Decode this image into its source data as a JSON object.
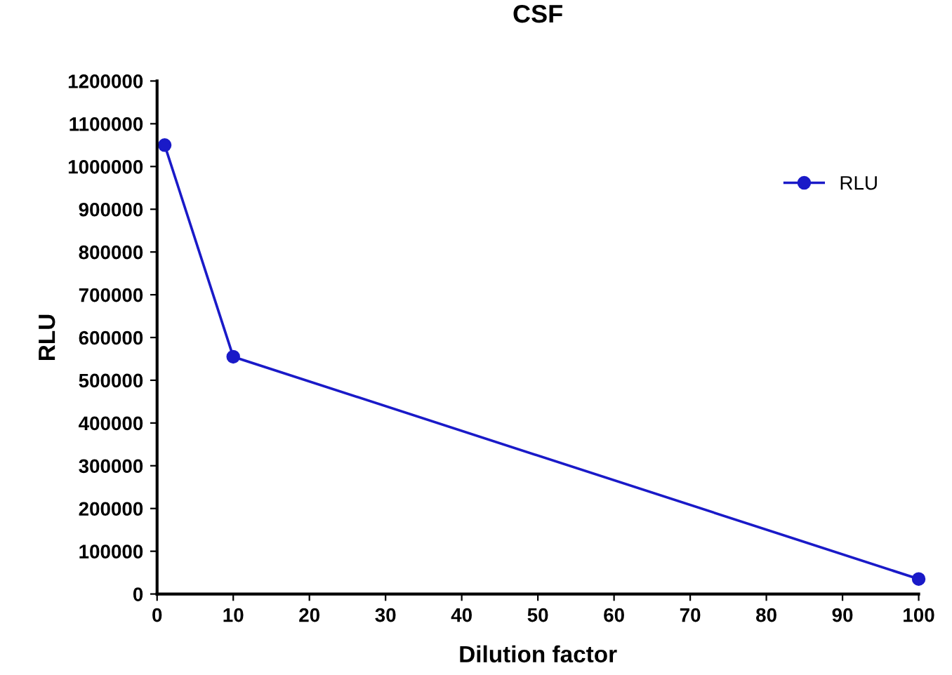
{
  "chart_data": {
    "type": "line",
    "title": "CSF",
    "xlabel": "Dilution factor",
    "ylabel": "RLU",
    "series": [
      {
        "name": "RLU",
        "color": "#1a1ac8",
        "x": [
          1,
          10,
          100
        ],
        "values": [
          1050000,
          555000,
          35000
        ]
      }
    ],
    "xlim": [
      0,
      100
    ],
    "xticks": [
      0,
      10,
      20,
      30,
      40,
      50,
      60,
      70,
      80,
      90,
      100
    ],
    "ylim": [
      0,
      1200000
    ],
    "yticks": [
      0,
      100000,
      200000,
      300000,
      400000,
      500000,
      600000,
      700000,
      800000,
      900000,
      1000000,
      1100000,
      1200000
    ],
    "grid": false,
    "legend": "top right",
    "marker": "circle",
    "line_style": "solid"
  }
}
